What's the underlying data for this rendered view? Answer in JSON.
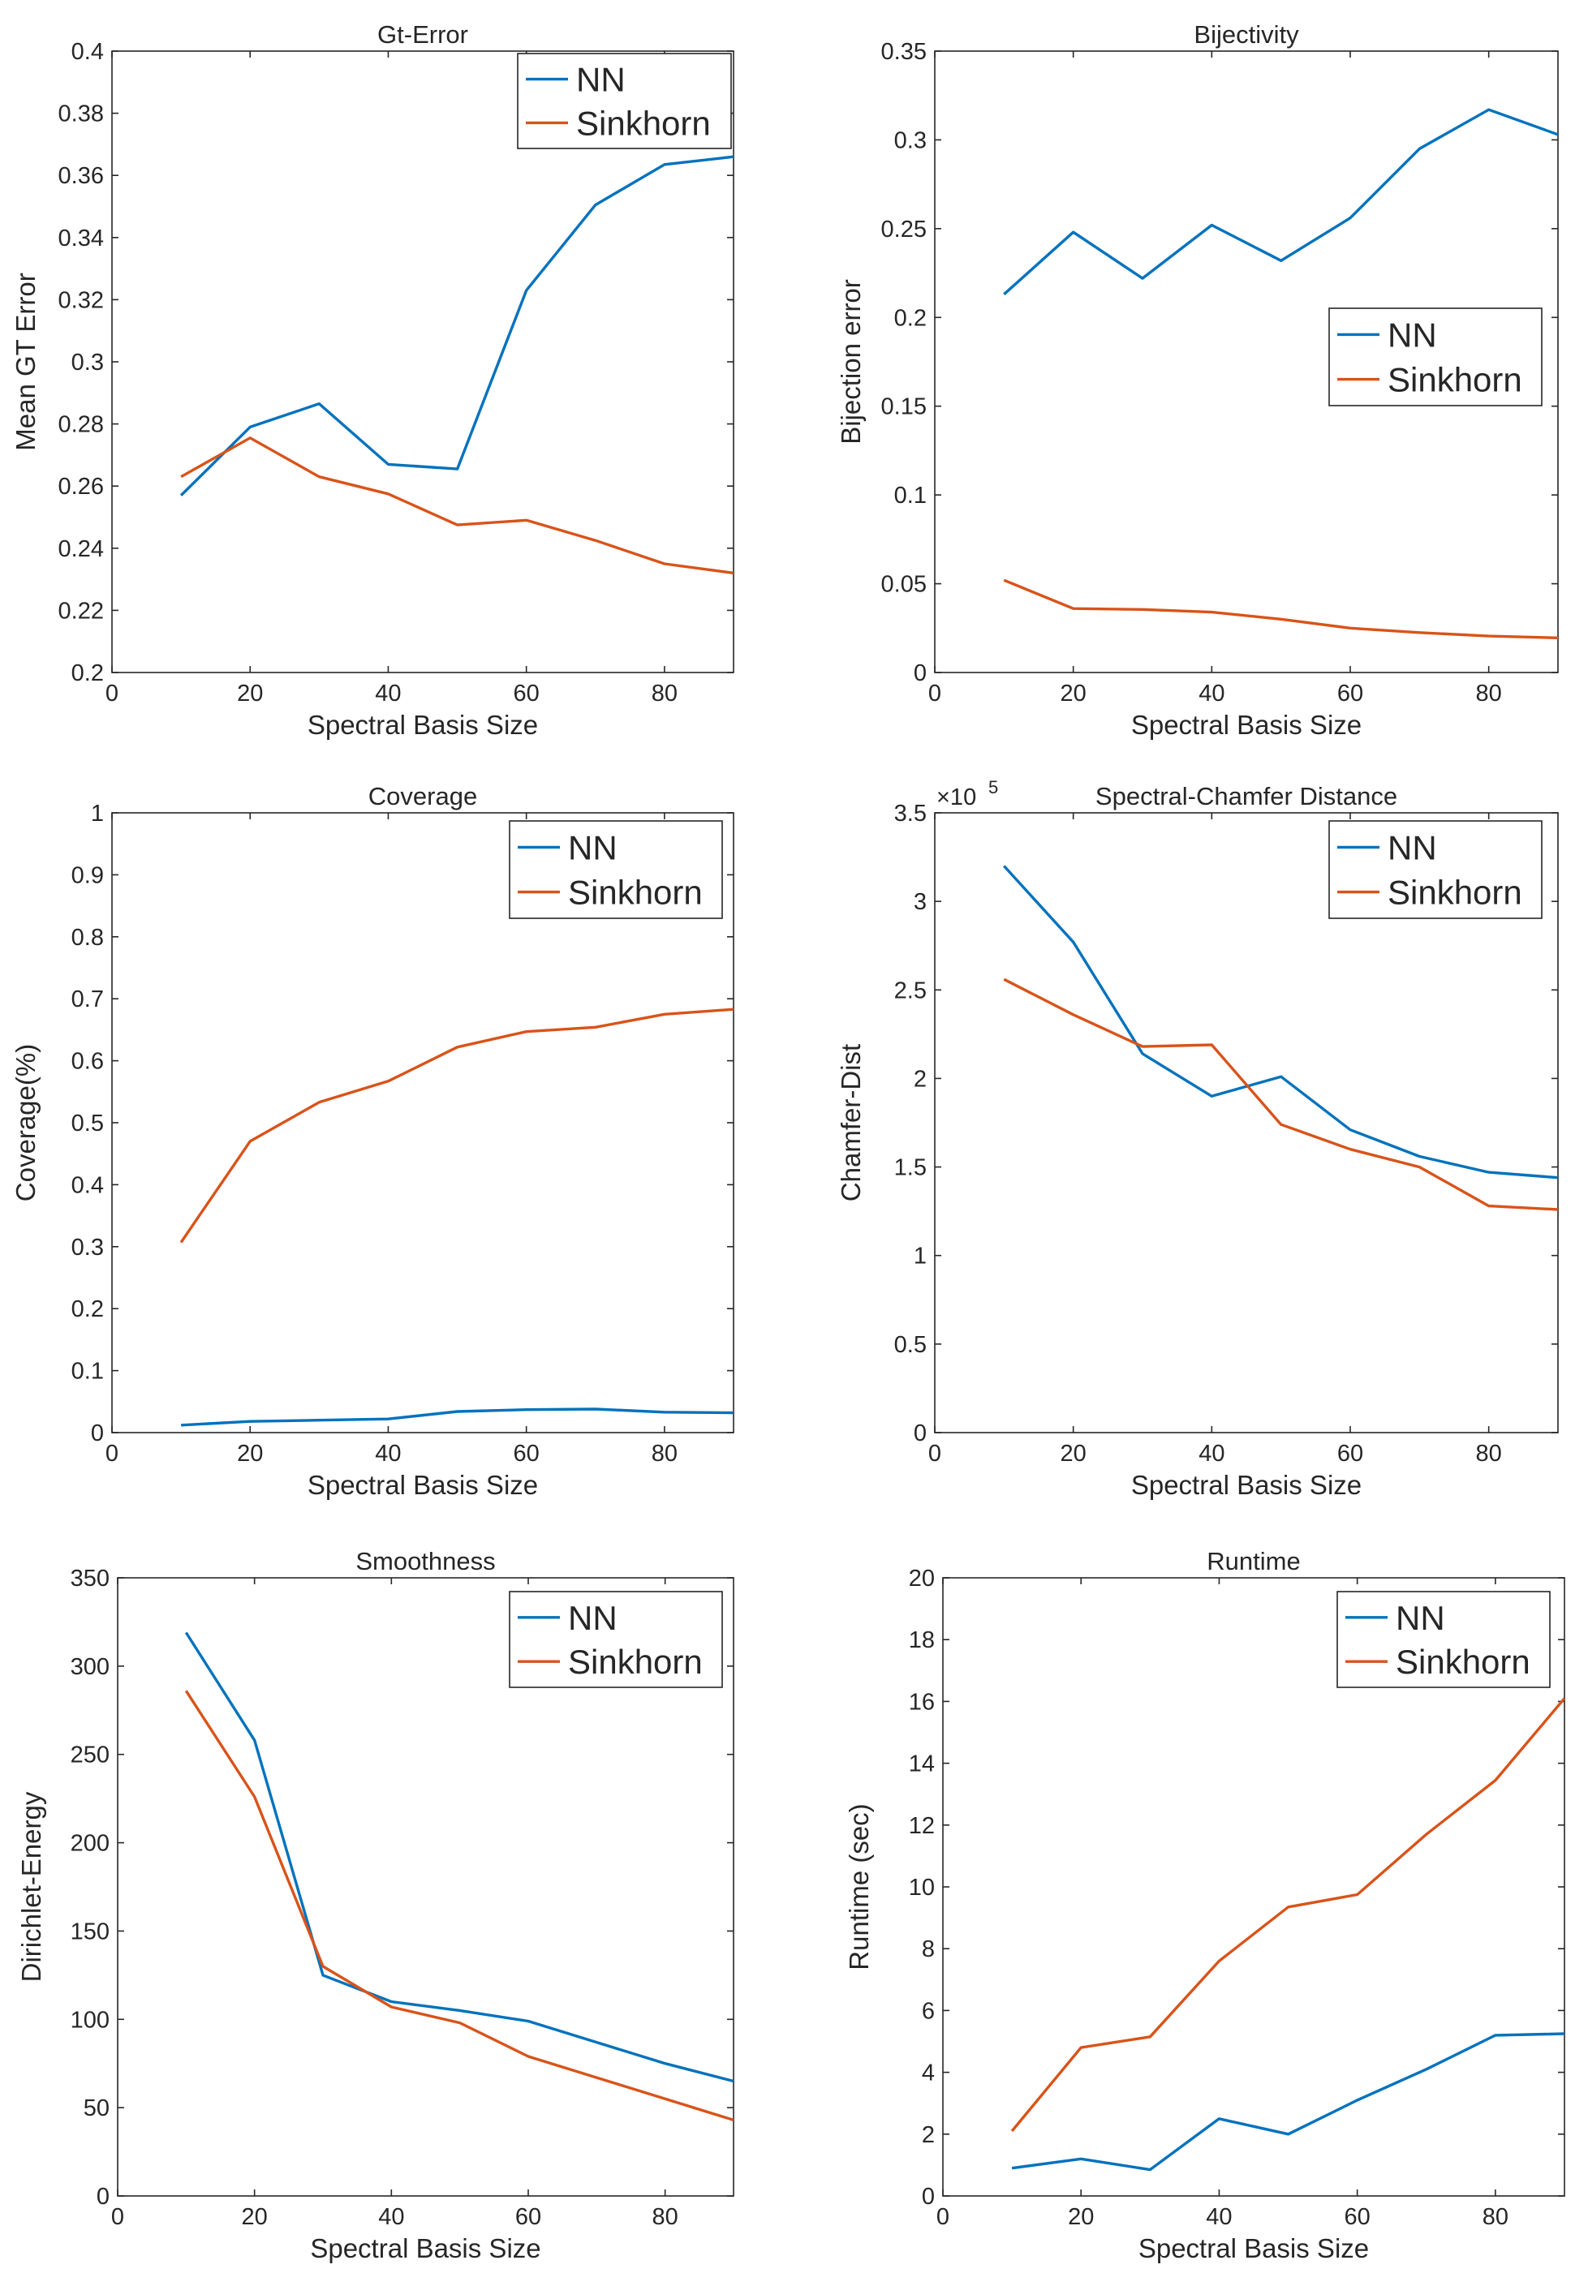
{
  "colors": {
    "nn": "#0072BD",
    "sinkhorn": "#D95319",
    "axis": "#262626"
  },
  "chart_data": [
    {
      "type": "line",
      "title": "Gt-Error",
      "xlabel": "Spectral Basis Size",
      "ylabel": "Mean GT Error",
      "xlim": [
        0,
        90
      ],
      "ylim": [
        0.2,
        0.4
      ],
      "xticks": [
        "0",
        "20",
        "40",
        "60",
        "80"
      ],
      "yticks": [
        "0.2",
        "0.22",
        "0.24",
        "0.26",
        "0.28",
        "0.3",
        "0.32",
        "0.34",
        "0.36",
        "0.38",
        "0.4"
      ],
      "legend": "top-right",
      "x": [
        10,
        20,
        30,
        40,
        50,
        60,
        70,
        80,
        90
      ],
      "series": [
        {
          "name": "NN",
          "values": [
            0.257,
            0.279,
            0.2865,
            0.267,
            0.2655,
            0.323,
            0.3505,
            0.3635,
            0.366
          ]
        },
        {
          "name": "Sinkhorn",
          "values": [
            0.263,
            0.2755,
            0.263,
            0.2575,
            0.2475,
            0.249,
            0.2425,
            0.235,
            0.232
          ]
        }
      ]
    },
    {
      "type": "line",
      "title": "Bijectivity",
      "xlabel": "Spectral Basis Size",
      "ylabel": "Bijection error",
      "xlim": [
        0,
        90
      ],
      "ylim": [
        0,
        0.35
      ],
      "xticks": [
        "0",
        "20",
        "40",
        "60",
        "80"
      ],
      "yticks": [
        "0",
        "0.05",
        "0.1",
        "0.15",
        "0.2",
        "0.25",
        "0.3",
        "0.35"
      ],
      "legend": "center-right",
      "x": [
        10,
        20,
        30,
        40,
        50,
        60,
        70,
        80,
        90
      ],
      "series": [
        {
          "name": "NN",
          "values": [
            0.213,
            0.248,
            0.222,
            0.252,
            0.232,
            0.256,
            0.295,
            0.317,
            0.303
          ]
        },
        {
          "name": "Sinkhorn",
          "values": [
            0.052,
            0.036,
            0.0355,
            0.034,
            0.03,
            0.025,
            0.0225,
            0.0205,
            0.0195
          ]
        }
      ]
    },
    {
      "type": "line",
      "title": "Coverage",
      "xlabel": "Spectral Basis Size",
      "ylabel": "Coverage(%)",
      "xlim": [
        0,
        90
      ],
      "ylim": [
        0,
        1
      ],
      "xticks": [
        "0",
        "20",
        "40",
        "60",
        "80"
      ],
      "yticks": [
        "0",
        "0.1",
        "0.2",
        "0.3",
        "0.4",
        "0.5",
        "0.6",
        "0.7",
        "0.8",
        "0.9",
        "1"
      ],
      "legend": "top-right",
      "x": [
        10,
        20,
        30,
        40,
        50,
        60,
        70,
        80,
        90
      ],
      "series": [
        {
          "name": "NN",
          "values": [
            0.012,
            0.018,
            0.02,
            0.022,
            0.034,
            0.037,
            0.038,
            0.033,
            0.032
          ]
        },
        {
          "name": "Sinkhorn",
          "values": [
            0.307,
            0.47,
            0.533,
            0.567,
            0.622,
            0.647,
            0.654,
            0.675,
            0.683
          ]
        }
      ]
    },
    {
      "type": "line",
      "title": "Spectral-Chamfer Distance",
      "xlabel": "Spectral Basis Size",
      "ylabel": "Chamfer-Dist",
      "multiplier": "×10",
      "multiplier_exp": "5",
      "xlim": [
        0,
        90
      ],
      "ylim": [
        0,
        3.5
      ],
      "xticks": [
        "0",
        "20",
        "40",
        "60",
        "80"
      ],
      "yticks": [
        "0",
        "0.5",
        "1",
        "1.5",
        "2",
        "2.5",
        "3",
        "3.5"
      ],
      "legend": "top-right",
      "x": [
        10,
        20,
        30,
        40,
        50,
        60,
        70,
        80,
        90
      ],
      "series": [
        {
          "name": "NN",
          "values": [
            3.2,
            2.77,
            2.14,
            1.9,
            2.01,
            1.71,
            1.56,
            1.47,
            1.44
          ]
        },
        {
          "name": "Sinkhorn",
          "values": [
            2.56,
            2.36,
            2.18,
            2.19,
            1.74,
            1.6,
            1.5,
            1.28,
            1.26
          ]
        }
      ]
    },
    {
      "type": "line",
      "title": "Smoothness",
      "xlabel": "Spectral Basis Size",
      "ylabel": "Dirichlet-Energy",
      "xlim": [
        0,
        90
      ],
      "ylim": [
        0,
        350
      ],
      "xticks": [
        "0",
        "20",
        "40",
        "60",
        "80"
      ],
      "yticks": [
        "0",
        "50",
        "100",
        "150",
        "200",
        "250",
        "300",
        "350"
      ],
      "legend": "top-right",
      "x": [
        10,
        20,
        30,
        40,
        50,
        60,
        70,
        80,
        90
      ],
      "series": [
        {
          "name": "NN",
          "values": [
            319,
            258,
            125,
            110,
            105,
            99,
            87,
            75,
            65
          ]
        },
        {
          "name": "Sinkhorn",
          "values": [
            286,
            226,
            130,
            107,
            98,
            79,
            67,
            55,
            43
          ]
        }
      ]
    },
    {
      "type": "line",
      "title": "Runtime",
      "xlabel": "Spectral Basis Size",
      "ylabel": "Runtime (sec)",
      "xlim": [
        0,
        90
      ],
      "ylim": [
        0,
        20
      ],
      "xticks": [
        "0",
        "20",
        "40",
        "60",
        "80"
      ],
      "yticks": [
        "0",
        "2",
        "4",
        "6",
        "8",
        "10",
        "12",
        "14",
        "16",
        "18",
        "20"
      ],
      "legend": "top-right",
      "x": [
        10,
        20,
        30,
        40,
        50,
        60,
        70,
        80,
        90
      ],
      "series": [
        {
          "name": "NN",
          "values": [
            0.9,
            1.2,
            0.85,
            2.5,
            2.0,
            3.1,
            4.1,
            5.2,
            5.25
          ]
        },
        {
          "name": "Sinkhorn",
          "values": [
            2.1,
            4.8,
            5.15,
            7.6,
            9.35,
            9.75,
            11.7,
            13.45,
            16.1
          ]
        }
      ]
    }
  ]
}
